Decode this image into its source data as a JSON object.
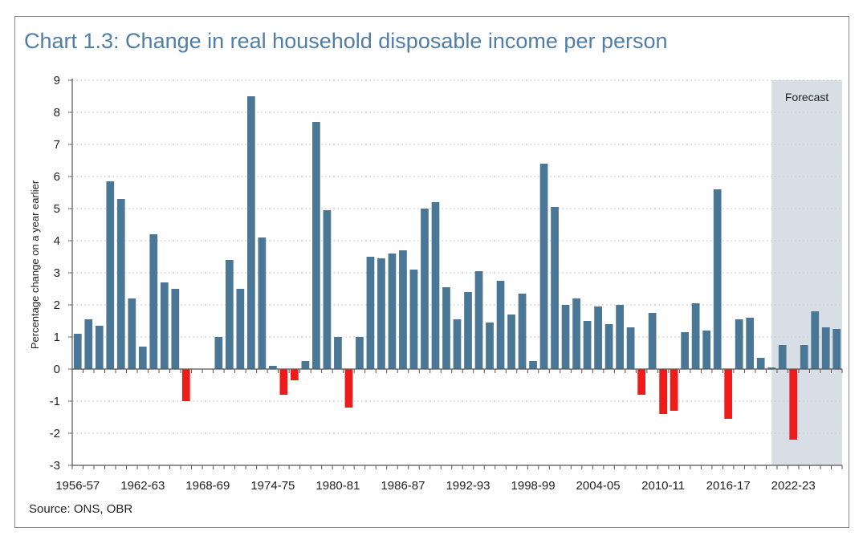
{
  "chart_data": {
    "type": "bar",
    "title": "Chart 1.3: Change in real household disposable income per person",
    "ylabel": "Percentage change on a year earlier",
    "xlabel": "",
    "ylim": [
      -3,
      9
    ],
    "yticks": [
      9,
      8,
      7,
      6,
      5,
      4,
      3,
      2,
      1,
      0,
      -1,
      -2,
      -3
    ],
    "x_tick_labels": [
      "1956-57",
      "1962-63",
      "1968-69",
      "1974-75",
      "1980-81",
      "1986-87",
      "1992-93",
      "1998-99",
      "2004-05",
      "2010-11",
      "2016-17",
      "2022-23"
    ],
    "x_tick_label_every": 6,
    "categories_start": "1956-57",
    "values": [
      1.1,
      1.55,
      1.35,
      5.85,
      5.3,
      2.2,
      0.7,
      4.2,
      2.7,
      2.5,
      -1.0,
      0.0,
      0.0,
      1.0,
      3.4,
      2.5,
      8.5,
      4.1,
      0.1,
      -0.8,
      -0.35,
      0.25,
      7.7,
      4.95,
      1.0,
      -1.2,
      1.0,
      3.5,
      3.45,
      3.6,
      3.7,
      3.1,
      5.0,
      5.2,
      2.55,
      1.55,
      2.4,
      3.05,
      1.45,
      2.75,
      1.7,
      2.35,
      0.25,
      6.4,
      5.05,
      2.0,
      2.2,
      1.5,
      1.95,
      1.4,
      2.0,
      1.3,
      -0.8,
      1.75,
      -1.4,
      -1.3,
      1.15,
      2.05,
      1.2,
      5.6,
      -1.55,
      1.55,
      1.6,
      0.35,
      0.05,
      0.75,
      -2.2,
      0.75,
      1.8,
      1.3,
      1.25
    ],
    "positive_color": "#4a7796",
    "negative_color": "#ee1b1b",
    "forecast_band": {
      "label": "Forecast",
      "start_index": 64,
      "color": "#d8dee6"
    },
    "grid": true,
    "source": "Source: ONS, OBR"
  }
}
